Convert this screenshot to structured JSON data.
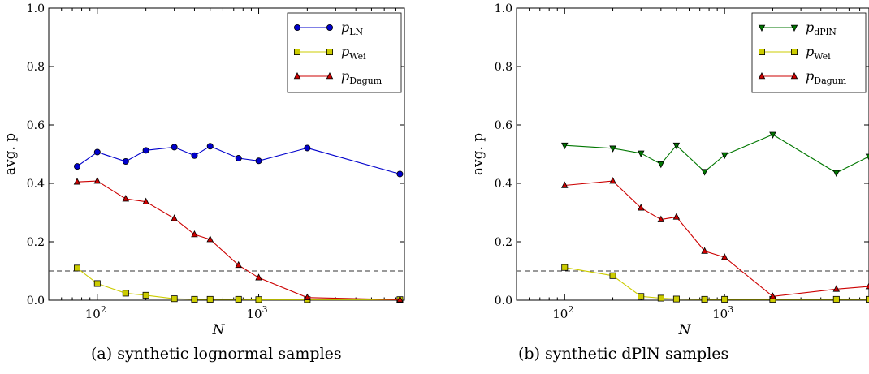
{
  "captions": [
    "(a) synthetic lognormal samples",
    "(b) synthetic dPlN samples"
  ],
  "chart_data": [
    {
      "type": "line",
      "x_scale": "log",
      "xlim": [
        50,
        8000
      ],
      "ylim": [
        0,
        1.0
      ],
      "xlabel": "N",
      "ylabel": "avg. p",
      "yticks": [
        "0.0",
        "0.2",
        "0.4",
        "0.6",
        "0.8",
        "1.0"
      ],
      "xticks": [
        {
          "base": "10",
          "exp": "2",
          "value": 100
        },
        {
          "base": "10",
          "exp": "3",
          "value": 1000
        }
      ],
      "reference_line": {
        "y": 0.1,
        "style": "dashed"
      },
      "legend_position": "top-right",
      "series": [
        {
          "name": "LN",
          "color": "#0000cc",
          "marker": "circle",
          "x": [
            75,
            100,
            150,
            200,
            300,
            400,
            500,
            750,
            1000,
            2000,
            7500
          ],
          "y": [
            0.458,
            0.507,
            0.475,
            0.513,
            0.524,
            0.495,
            0.527,
            0.486,
            0.477,
            0.521,
            0.432
          ]
        },
        {
          "name": "Wei",
          "color": "#cccc00",
          "marker": "square",
          "x": [
            75,
            100,
            150,
            200,
            300,
            400,
            500,
            750,
            1000,
            2000,
            7500
          ],
          "y": [
            0.11,
            0.057,
            0.024,
            0.017,
            0.005,
            0.003,
            0.003,
            0.003,
            0.002,
            0.002,
            0.002
          ]
        },
        {
          "name": "Dagum",
          "color": "#cc0000",
          "marker": "triangle-up",
          "x": [
            75,
            100,
            150,
            200,
            300,
            400,
            500,
            750,
            1000,
            2000,
            7500
          ],
          "y": [
            0.405,
            0.408,
            0.347,
            0.337,
            0.28,
            0.225,
            0.208,
            0.12,
            0.077,
            0.009,
            0.002
          ]
        }
      ]
    },
    {
      "type": "line",
      "x_scale": "log",
      "xlim": [
        50,
        8000
      ],
      "ylim": [
        0,
        1.0
      ],
      "xlabel": "N",
      "ylabel": "avg. p",
      "yticks": [
        "0.0",
        "0.2",
        "0.4",
        "0.6",
        "0.8",
        "1.0"
      ],
      "xticks": [
        {
          "base": "10",
          "exp": "2",
          "value": 100
        },
        {
          "base": "10",
          "exp": "3",
          "value": 1000
        }
      ],
      "reference_line": {
        "y": 0.1,
        "style": "dashed"
      },
      "legend_position": "top-right",
      "series": [
        {
          "name": "dPlN",
          "color": "#007700",
          "marker": "triangle-down",
          "x": [
            100,
            200,
            300,
            400,
            500,
            750,
            1000,
            2000,
            5000,
            8000
          ],
          "y": [
            0.53,
            0.52,
            0.503,
            0.466,
            0.53,
            0.44,
            0.497,
            0.567,
            0.436,
            0.492
          ]
        },
        {
          "name": "Wei",
          "color": "#cccc00",
          "marker": "square",
          "x": [
            100,
            200,
            300,
            400,
            500,
            750,
            1000,
            2000,
            5000,
            8000
          ],
          "y": [
            0.112,
            0.084,
            0.013,
            0.007,
            0.004,
            0.003,
            0.003,
            0.003,
            0.003,
            0.003
          ]
        },
        {
          "name": "Dagum",
          "color": "#cc0000",
          "marker": "triangle-up",
          "x": [
            100,
            200,
            300,
            400,
            500,
            750,
            1000,
            2000,
            5000,
            8000
          ],
          "y": [
            0.393,
            0.408,
            0.316,
            0.276,
            0.285,
            0.168,
            0.147,
            0.013,
            0.038,
            0.047
          ]
        }
      ]
    }
  ]
}
